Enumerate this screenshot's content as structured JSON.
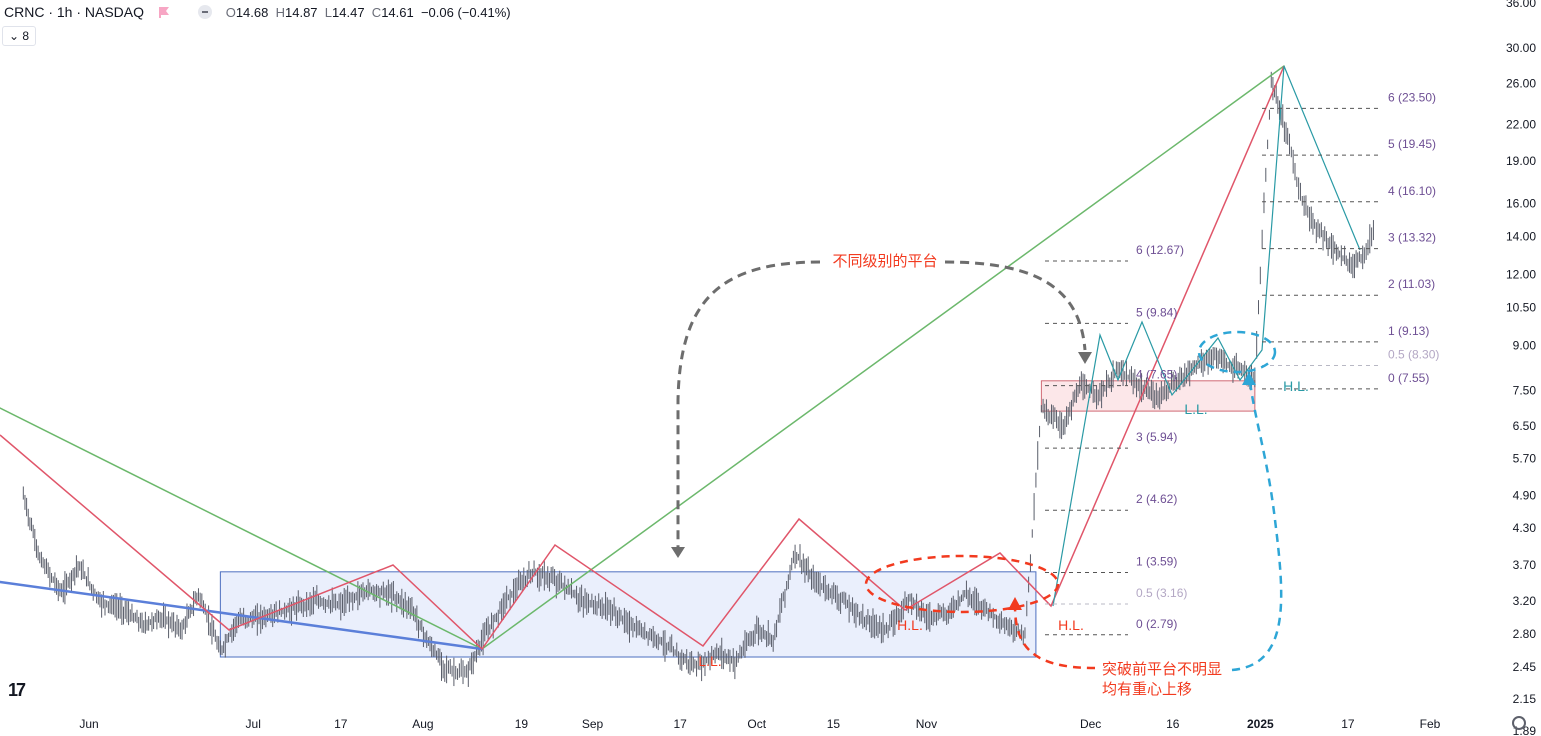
{
  "header": {
    "symbol": "CRNC · 1h · NASDAQ",
    "open_label": "O",
    "open": "14.68",
    "high_label": "H",
    "high": "14.87",
    "low_label": "L",
    "low": "14.47",
    "close_label": "C",
    "close": "14.61",
    "change": "−0.06 (−0.41%)",
    "indicator_count": "8"
  },
  "colors": {
    "bar": "#5a5e6a",
    "red": "#e0566a",
    "green": "#6cb86c",
    "blue_line": "#5b7fd9",
    "teal": "#2a9aa5",
    "annotation": "#f23a1f",
    "fib_text": "#6e4f94",
    "fib_half": "#b3a7c4",
    "cyan": "#2ea6d6",
    "gray_arrow": "#6d6d6d",
    "box_blue_fill": "#e6ecfb",
    "box_blue_stroke": "#4d6fc0",
    "box_pink_fill": "#fbe3e5",
    "box_pink_stroke": "#d06a74"
  },
  "chart_data": {
    "type": "candlestick",
    "scale": "log",
    "y_ticks": [
      "36.00",
      "30.00",
      "26.00",
      "22.00",
      "19.00",
      "16.00",
      "14.00",
      "12.00",
      "10.50",
      "9.00",
      "7.50",
      "6.50",
      "5.70",
      "4.90",
      "4.30",
      "3.70",
      "3.20",
      "2.80",
      "2.45",
      "2.15",
      "1.89"
    ],
    "x_ticks": [
      "Jun",
      "Jul",
      "17",
      "Aug",
      "19",
      "Sep",
      "17",
      "Oct",
      "15",
      "Nov",
      "Dec",
      "16",
      "2025",
      "17",
      "Feb"
    ],
    "price_path": [
      [
        "2024-05-20",
        4.9
      ],
      [
        "2024-05-23",
        3.8
      ],
      [
        "2024-05-27",
        3.3
      ],
      [
        "2024-05-30",
        3.7
      ],
      [
        "2024-06-03",
        3.2
      ],
      [
        "2024-06-07",
        3.1
      ],
      [
        "2024-06-11",
        2.9
      ],
      [
        "2024-06-14",
        3.0
      ],
      [
        "2024-06-18",
        2.85
      ],
      [
        "2024-06-21",
        3.3
      ],
      [
        "2024-06-25",
        2.6
      ],
      [
        "2024-06-28",
        2.95
      ],
      [
        "2024-07-03",
        3.0
      ],
      [
        "2024-07-08",
        3.1
      ],
      [
        "2024-07-12",
        3.2
      ],
      [
        "2024-07-17",
        3.15
      ],
      [
        "2024-07-22",
        3.35
      ],
      [
        "2024-07-26",
        3.3
      ],
      [
        "2024-07-30",
        3.1
      ],
      [
        "2024-08-02",
        2.7
      ],
      [
        "2024-08-05",
        2.45
      ],
      [
        "2024-08-07",
        2.4
      ],
      [
        "2024-08-09",
        2.38
      ],
      [
        "2024-08-12",
        2.75
      ],
      [
        "2024-08-16",
        3.2
      ],
      [
        "2024-08-21",
        3.6
      ],
      [
        "2024-08-26",
        3.45
      ],
      [
        "2024-08-30",
        3.2
      ],
      [
        "2024-09-04",
        3.1
      ],
      [
        "2024-09-09",
        2.85
      ],
      [
        "2024-09-13",
        2.75
      ],
      [
        "2024-09-17",
        2.55
      ],
      [
        "2024-09-20",
        2.45
      ],
      [
        "2024-09-24",
        2.6
      ],
      [
        "2024-09-27",
        2.5
      ],
      [
        "2024-10-01",
        2.85
      ],
      [
        "2024-10-04",
        2.75
      ],
      [
        "2024-10-08",
        3.9
      ],
      [
        "2024-10-11",
        3.5
      ],
      [
        "2024-10-16",
        3.25
      ],
      [
        "2024-10-21",
        2.95
      ],
      [
        "2024-10-25",
        2.85
      ],
      [
        "2024-10-29",
        3.25
      ],
      [
        "2024-11-01",
        3.0
      ],
      [
        "2024-11-05",
        3.05
      ],
      [
        "2024-11-08",
        3.3
      ],
      [
        "2024-11-12",
        3.1
      ],
      [
        "2024-11-15",
        2.9
      ],
      [
        "2024-11-19",
        2.8
      ],
      [
        "2024-11-21",
        5.2
      ],
      [
        "2024-11-22",
        7.0
      ],
      [
        "2024-11-26",
        6.5
      ],
      [
        "2024-11-29",
        7.6
      ],
      [
        "2024-12-03",
        7.4
      ],
      [
        "2024-12-06",
        8.2
      ],
      [
        "2024-12-10",
        7.6
      ],
      [
        "2024-12-13",
        7.3
      ],
      [
        "2024-12-17",
        7.8
      ],
      [
        "2024-12-20",
        8.3
      ],
      [
        "2024-12-24",
        8.6
      ],
      [
        "2024-12-27",
        8.2
      ],
      [
        "2024-12-31",
        7.9
      ],
      [
        "2025-01-02",
        18.0
      ],
      [
        "2025-01-03",
        26.0
      ],
      [
        "2025-01-06",
        21.0
      ],
      [
        "2025-01-08",
        17.0
      ],
      [
        "2025-01-10",
        15.0
      ],
      [
        "2025-01-14",
        13.5
      ],
      [
        "2025-01-17",
        12.5
      ],
      [
        "2025-01-20",
        13.0
      ],
      [
        "2025-01-22",
        14.6
      ]
    ],
    "boxes": [
      {
        "name": "lower-platform",
        "from": "2024-06-25",
        "to": "2024-11-21",
        "low": 2.55,
        "high": 3.6
      },
      {
        "name": "upper-platform",
        "from": "2024-11-22",
        "to": "2024-12-31",
        "low": 6.9,
        "high": 7.8
      }
    ],
    "fib_lower": [
      {
        "label": "6 (12.67)",
        "value": 12.67
      },
      {
        "label": "5 (9.84)",
        "value": 9.84
      },
      {
        "label": "4 (7.65)",
        "value": 7.65
      },
      {
        "label": "3 (5.94)",
        "value": 5.94
      },
      {
        "label": "2 (4.62)",
        "value": 4.62
      },
      {
        "label": "1 (3.59)",
        "value": 3.59
      },
      {
        "label": "0.5 (3.16)",
        "value": 3.16
      },
      {
        "label": "0 (2.79)",
        "value": 2.79
      }
    ],
    "fib_upper": [
      {
        "label": "6 (23.50)",
        "value": 23.5
      },
      {
        "label": "5 (19.45)",
        "value": 19.45
      },
      {
        "label": "4 (16.10)",
        "value": 16.1
      },
      {
        "label": "3 (13.32)",
        "value": 13.32
      },
      {
        "label": "2 (11.03)",
        "value": 11.03
      },
      {
        "label": "1 (9.13)",
        "value": 9.13
      },
      {
        "label": "0.5 (8.30)",
        "value": 8.3
      },
      {
        "label": "0 (7.55)",
        "value": 7.55
      }
    ],
    "annotations": {
      "platform_note": "不同级别的平台",
      "breakout_note_line1": "突破前平台不明显",
      "breakout_note_line2": "均有重心上移",
      "hl_1": "H.L.",
      "hl_2": "H.L.",
      "hl_3": "H.L.",
      "ll_1": "L.L.",
      "ll_2": "L.L."
    }
  }
}
